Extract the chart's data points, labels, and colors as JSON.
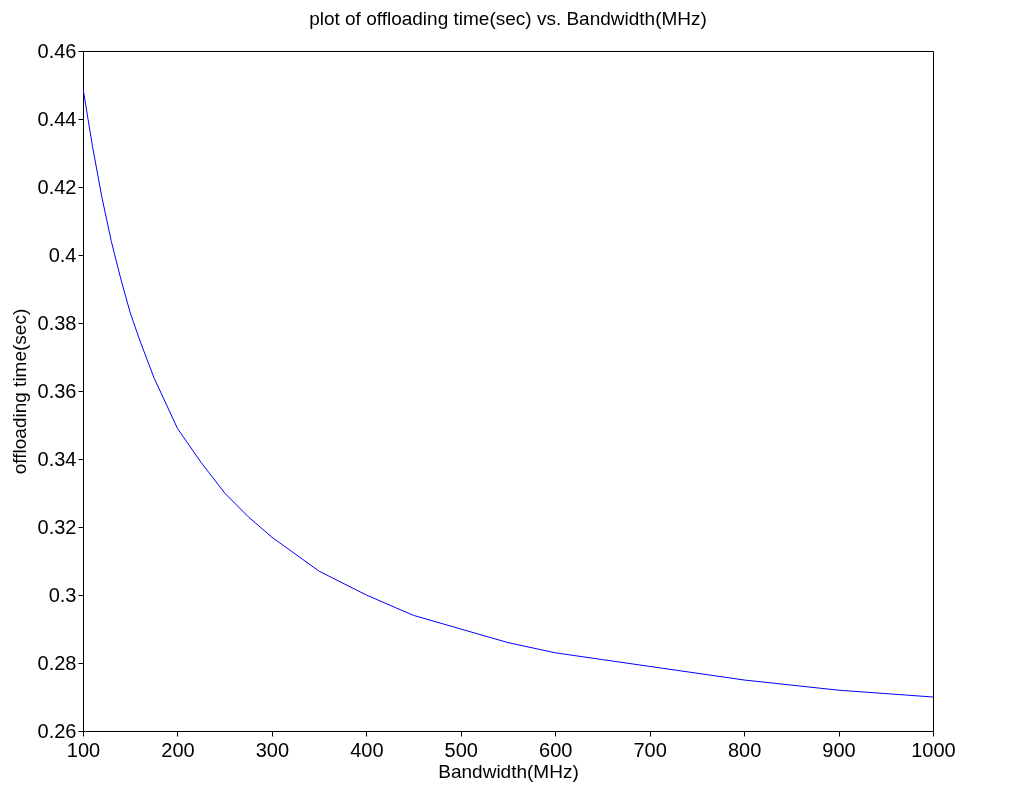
{
  "chart_data": {
    "type": "line",
    "title": "plot of offloading time(sec) vs. Bandwidth(MHz)",
    "xlabel": "Bandwidth(MHz)",
    "ylabel": "offloading time(sec)",
    "x": [
      100,
      110,
      120,
      130,
      140,
      150,
      160,
      175,
      200,
      225,
      250,
      275,
      300,
      350,
      400,
      450,
      500,
      550,
      600,
      650,
      700,
      750,
      800,
      850,
      900,
      950,
      1000
    ],
    "series": [
      {
        "color": "#0000ff",
        "values": [
          0.449,
          0.432,
          0.417,
          0.404,
          0.393,
          0.383,
          0.375,
          0.364,
          0.349,
          0.339,
          0.33,
          0.323,
          0.317,
          0.307,
          0.3,
          0.294,
          0.29,
          0.286,
          0.283,
          0.281,
          0.279,
          0.277,
          0.275,
          0.2735,
          0.272,
          0.271,
          0.27
        ]
      }
    ],
    "xlim": [
      100,
      1000
    ],
    "xticks": [
      100,
      200,
      300,
      400,
      500,
      600,
      700,
      800,
      900,
      1000
    ],
    "ylim": [
      0.26,
      0.46
    ],
    "yticks": [
      0.26,
      0.28,
      {
        "value": 0.3,
        "label": "0.3"
      },
      0.32,
      0.34,
      0.36,
      0.38,
      {
        "value": 0.4,
        "label": "0.4"
      },
      0.42,
      0.44,
      0.46
    ],
    "grid": false,
    "legend": false,
    "marker": "none",
    "line_style": "solid"
  }
}
